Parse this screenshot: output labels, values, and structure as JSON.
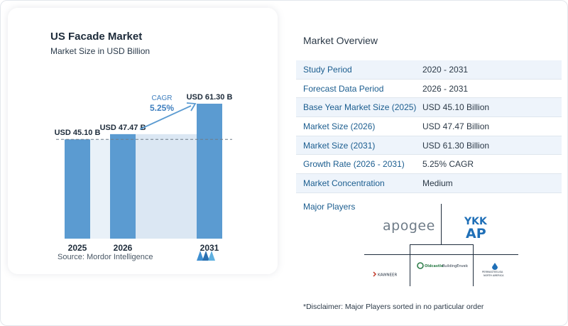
{
  "chart": {
    "title": "US Facade Market",
    "subtitle": "Market Size in USD Billion",
    "source": "Source:  Mordor Intelligence",
    "cagr_label": "CAGR",
    "cagr_value": "5.25%"
  },
  "chart_data": {
    "type": "bar",
    "categories": [
      "2025",
      "2026",
      "2031"
    ],
    "values": [
      45.1,
      47.47,
      61.3
    ],
    "value_labels": [
      "USD 45.10 B",
      "USD 47.47 B",
      "USD 61.30 B"
    ],
    "title": "US Facade Market",
    "subtitle": "Market Size in USD Billion",
    "xlabel": "",
    "ylabel": "",
    "ylim": [
      0,
      63
    ],
    "grid": false,
    "annotation": "CAGR 5.25%",
    "colors": {
      "bar": "#5b9bd1",
      "bar_2031": "#5b9bd1",
      "shade": "#dbe7f3",
      "arrow": "#5b9bd1",
      "cagr_text": "#3f7fbf",
      "dashed": "#6f7c88"
    }
  },
  "overview": {
    "title": "Market Overview",
    "rows": [
      {
        "label": "Study Period",
        "value": "2020 - 2031"
      },
      {
        "label": "Forecast Data Period",
        "value": "2026 - 2031"
      },
      {
        "label": "Base Year Market Size (2025)",
        "value": "USD 45.10 Billion"
      },
      {
        "label": "Market Size (2026)",
        "value": "USD 47.47 Billion"
      },
      {
        "label": "Market Size (2031)",
        "value": "USD 61.30 Billion"
      },
      {
        "label": "Growth Rate (2026 - 2031)",
        "value": "5.25% CAGR"
      },
      {
        "label": "Market Concentration",
        "value": "Medium"
      }
    ]
  },
  "players": {
    "title": "Major Players",
    "logos": [
      {
        "name": "apogee",
        "text": "apogee",
        "icon": "apogee-logo"
      },
      {
        "name": "ykk-ap",
        "text": "YKK AP",
        "icon": "ykk-ap-logo"
      },
      {
        "name": "kawneer",
        "text": "KAWNEER",
        "icon": "kawneer-logo"
      },
      {
        "name": "oldcastle",
        "text": "Oldcastle BuildingEnvelope",
        "icon": "oldcastle-logo"
      },
      {
        "name": "permasteelisa",
        "text": "PERMASTEELISA NORTH AMERICA",
        "icon": "permasteelisa-logo"
      }
    ]
  },
  "disclaimer": "*Disclaimer: Major Players sorted in no particular order",
  "colors": {
    "accent": "#1b5d8f",
    "row_alt": "#eef4fb",
    "border": "#dfe6ee"
  }
}
